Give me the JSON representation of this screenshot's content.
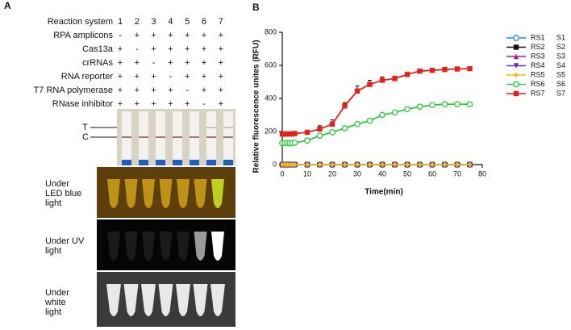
{
  "panel_a": {
    "label": "A",
    "table": {
      "rows": [
        [
          "Reaction system",
          "1",
          "2",
          "3",
          "4",
          "5",
          "6",
          "7"
        ],
        [
          "RPA  amplicons",
          "-",
          "+",
          "+",
          "+",
          "+",
          "+",
          "+"
        ],
        [
          "Cas13a",
          "+",
          "-",
          "+",
          "+",
          "+",
          "+",
          "+"
        ],
        [
          "crRNAs",
          "+",
          "+",
          "-",
          "+",
          "+",
          "+",
          "+"
        ],
        [
          "RNA reporter",
          "+",
          "+",
          "+",
          "-",
          "+",
          "+",
          "+"
        ],
        [
          "T7 RNA polymerase",
          "+",
          "+",
          "+",
          "+",
          "-",
          "+",
          "+"
        ],
        [
          "RNase inhibitor",
          "+",
          "+",
          "+",
          "+",
          "+",
          "-",
          "+"
        ]
      ]
    },
    "strip_labels": [
      "T",
      "C"
    ],
    "photo_labels": [
      [
        "Under",
        "LED blue",
        "light"
      ],
      [
        "Under UV",
        "light"
      ],
      [
        "Under",
        "white",
        "light"
      ]
    ]
  },
  "chart_data": {
    "type": "line",
    "panel_label": "B",
    "xlabel": "Time(min)",
    "ylabel": "Relative fluorescence unites (RFU)",
    "x": [
      0,
      1,
      2,
      3,
      4,
      5,
      10,
      15,
      20,
      25,
      30,
      35,
      40,
      45,
      50,
      55,
      60,
      65,
      70,
      75
    ],
    "xlim": [
      0,
      80
    ],
    "xticks": [
      0,
      10,
      20,
      30,
      40,
      50,
      60,
      70,
      80
    ],
    "ylim": [
      0,
      800
    ],
    "yticks": [
      0,
      200,
      400,
      600,
      800
    ],
    "legend_notes": [
      "S1",
      "S2",
      "S3",
      "S4",
      "S5",
      "S6",
      "S7"
    ],
    "series": [
      {
        "name": "RS1",
        "color": "#2e86de",
        "marker": "circle",
        "values": [
          0,
          0,
          0,
          0,
          0,
          0,
          0,
          0,
          0,
          0,
          0,
          0,
          0,
          0,
          0,
          0,
          0,
          0,
          0,
          0
        ]
      },
      {
        "name": "RS2",
        "color": "#111111",
        "marker": "square",
        "values": [
          0,
          0,
          0,
          0,
          0,
          0,
          0,
          0,
          0,
          0,
          0,
          0,
          0,
          0,
          0,
          0,
          0,
          0,
          0,
          0
        ]
      },
      {
        "name": "RS3",
        "color": "#b0208c",
        "marker": "triangle-up",
        "values": [
          0,
          0,
          0,
          0,
          0,
          0,
          0,
          0,
          0,
          0,
          0,
          0,
          0,
          0,
          0,
          0,
          0,
          0,
          0,
          0
        ]
      },
      {
        "name": "RS4",
        "color": "#6a2fb0",
        "marker": "triangle-down",
        "values": [
          0,
          0,
          0,
          0,
          0,
          0,
          0,
          0,
          0,
          0,
          0,
          0,
          0,
          0,
          0,
          0,
          0,
          0,
          0,
          0
        ]
      },
      {
        "name": "RS5",
        "color": "#e8c010",
        "marker": "diamond",
        "values": [
          0,
          0,
          0,
          0,
          0,
          0,
          0,
          0,
          0,
          0,
          0,
          0,
          0,
          0,
          0,
          0,
          0,
          0,
          0,
          0
        ]
      },
      {
        "name": "RS6",
        "color": "#2ecc40",
        "marker": "circle",
        "values": [
          130,
          130,
          130,
          130,
          130,
          133,
          145,
          175,
          195,
          220,
          245,
          265,
          300,
          315,
          335,
          350,
          360,
          365,
          365,
          365
        ]
      },
      {
        "name": "RS7",
        "color": "#e8201a",
        "marker": "square",
        "values": [
          185,
          185,
          185,
          185,
          185,
          188,
          195,
          215,
          245,
          355,
          445,
          485,
          510,
          520,
          545,
          565,
          570,
          575,
          578,
          580
        ],
        "errors": [
          5,
          5,
          5,
          5,
          5,
          6,
          8,
          20,
          25,
          20,
          30,
          25,
          20,
          15,
          12,
          8,
          6,
          6,
          5,
          5
        ]
      }
    ]
  }
}
